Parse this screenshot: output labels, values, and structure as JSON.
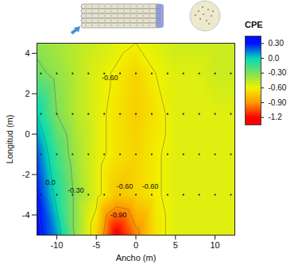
{
  "chart_data": {
    "type": "contour",
    "x_label": "Ancho (m)",
    "y_label": "Longitud (m)",
    "xlim": [
      -12.5,
      12.5
    ],
    "xticks": [
      -10,
      -5,
      0,
      5,
      10
    ],
    "ylim": [
      -5,
      4.5
    ],
    "yticks": [
      -4,
      -2,
      0,
      2,
      4
    ],
    "cells": {
      "x": [
        -12.5,
        -10,
        -7.5,
        -5,
        -2.5,
        0,
        2.5,
        5,
        7.5,
        10,
        12.5
      ],
      "y": [
        -5,
        -3,
        -1,
        1,
        3,
        4.5
      ],
      "values": [
        [
          0.35,
          0.1,
          -0.35,
          -0.7,
          -1.25,
          -0.95,
          -0.65,
          -0.55,
          -0.55,
          -0.55,
          -0.55
        ],
        [
          0.3,
          -0.05,
          -0.35,
          -0.55,
          -0.75,
          -0.7,
          -0.62,
          -0.55,
          -0.55,
          -0.55,
          -0.55
        ],
        [
          0.2,
          -0.15,
          -0.4,
          -0.55,
          -0.65,
          -0.7,
          -0.62,
          -0.55,
          -0.55,
          -0.55,
          -0.55
        ],
        [
          0.0,
          -0.3,
          -0.45,
          -0.55,
          -0.65,
          -0.72,
          -0.65,
          -0.55,
          -0.55,
          -0.55,
          -0.55
        ],
        [
          -0.25,
          -0.35,
          -0.45,
          -0.55,
          -0.62,
          -0.7,
          -0.6,
          -0.55,
          -0.55,
          -0.5,
          -0.5
        ],
        [
          -0.35,
          -0.4,
          -0.45,
          -0.5,
          -0.55,
          -0.6,
          -0.55,
          -0.5,
          -0.5,
          -0.5,
          -0.5
        ]
      ]
    },
    "colorbar": {
      "title": "CPE",
      "range": [
        -1.35,
        0.45
      ],
      "ticks": [
        {
          "value": -1.2,
          "label": "-1.2"
        },
        {
          "value": -0.9,
          "label": "-0.90"
        },
        {
          "value": -0.6,
          "label": "-0.60"
        },
        {
          "value": -0.3,
          "label": "-0.30"
        },
        {
          "value": 0,
          "label": "0.0"
        },
        {
          "value": 0.3,
          "label": "0.30"
        }
      ],
      "colors": [
        "#ff0000",
        "#ff9a00",
        "#f2f200",
        "#7ee05a",
        "#00dcb8",
        "#0010ff"
      ]
    },
    "points": {
      "x": [
        -12,
        -10,
        -8,
        -6,
        -4,
        -2,
        0,
        2,
        4,
        6,
        8,
        10,
        12
      ],
      "y": [
        -3,
        -1,
        1,
        3
      ]
    },
    "annotations": [
      {
        "text": "-0.60",
        "x": -3.3,
        "y": 2.8
      },
      {
        "text": "0.0",
        "x": -10.8,
        "y": -2.4
      },
      {
        "text": "-0.30",
        "x": -7.6,
        "y": -2.8
      },
      {
        "text": "-0.60",
        "x": -1.4,
        "y": -2.6
      },
      {
        "text": "-0.60",
        "x": 1.8,
        "y": -2.6
      },
      {
        "text": "-0.90",
        "x": -2.2,
        "y": -4.0
      }
    ]
  }
}
